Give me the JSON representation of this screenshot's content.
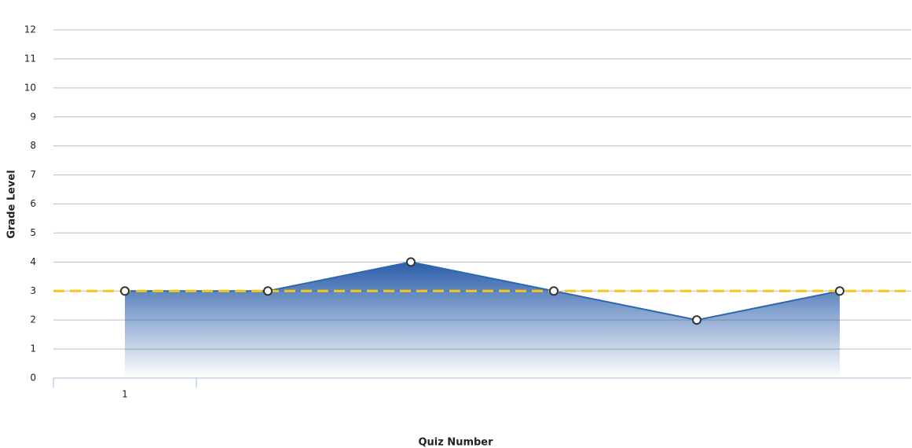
{
  "chart_data": {
    "type": "area",
    "x_label": "Quiz Number",
    "y_label": "Grade Level",
    "categories": [
      "1",
      null,
      null,
      null,
      null,
      null
    ],
    "series": [
      {
        "name": null,
        "color": "#2f66b0",
        "values": [
          3,
          3,
          4,
          3,
          2,
          3
        ]
      }
    ],
    "reference_line": {
      "value": 3,
      "color": "#f5c518"
    },
    "ylim": [
      0,
      12
    ],
    "yticks": [
      0,
      1,
      2,
      3,
      4,
      5,
      6,
      7,
      8,
      9,
      10,
      11,
      12
    ],
    "grid": true
  }
}
